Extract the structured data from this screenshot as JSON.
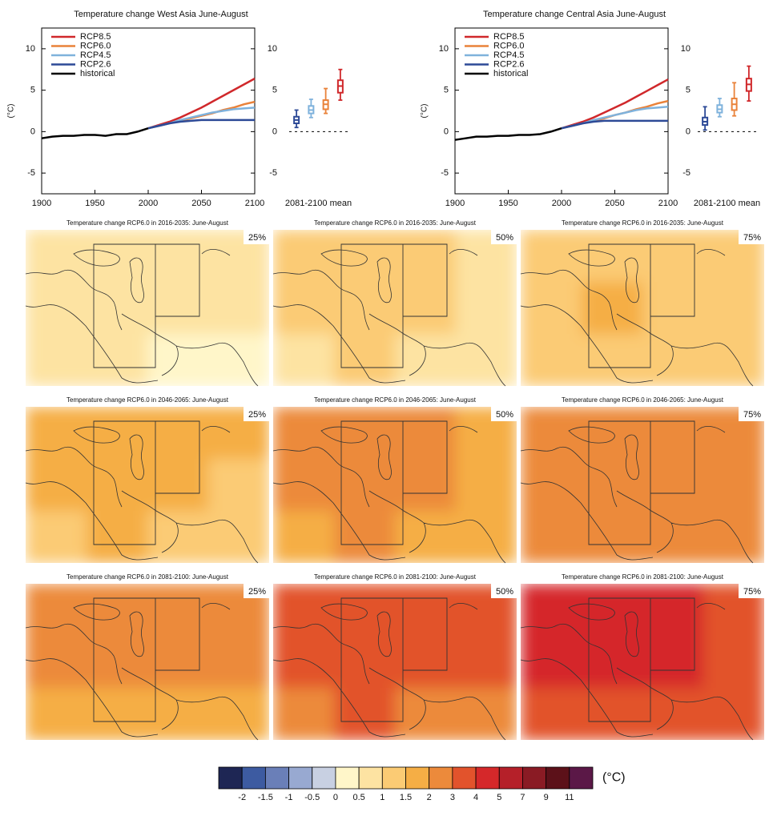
{
  "chart_data": [
    {
      "type": "line",
      "title": "Temperature change West Asia June-August",
      "y_label": "(°C)",
      "box_label": "2081-2100 mean",
      "x": [
        1900,
        1910,
        1920,
        1930,
        1940,
        1950,
        1960,
        1970,
        1980,
        1990,
        2000,
        2010,
        2020,
        2030,
        2040,
        2050,
        2060,
        2070,
        2080,
        2090,
        2100
      ],
      "xlim": [
        1900,
        2100
      ],
      "xticks": [
        1900,
        1950,
        2000,
        2050,
        2100
      ],
      "ylim": [
        -7.5,
        12.5
      ],
      "yticks": [
        -5,
        0,
        5,
        10
      ],
      "series": [
        {
          "name": "RCP8.5",
          "color": "#d0282b",
          "values": [
            null,
            null,
            null,
            null,
            null,
            null,
            null,
            null,
            null,
            null,
            0.4,
            0.8,
            1.2,
            1.7,
            2.3,
            2.9,
            3.6,
            4.3,
            5.0,
            5.7,
            6.4
          ],
          "box": {
            "min": 3.8,
            "q1": 4.7,
            "median": 5.5,
            "q3": 6.2,
            "max": 7.5
          }
        },
        {
          "name": "RCP6.0",
          "color": "#e9823a",
          "values": [
            null,
            null,
            null,
            null,
            null,
            null,
            null,
            null,
            null,
            null,
            0.4,
            0.7,
            1.0,
            1.3,
            1.6,
            1.9,
            2.2,
            2.6,
            2.9,
            3.3,
            3.6
          ],
          "box": {
            "min": 2.2,
            "q1": 2.7,
            "median": 3.3,
            "q3": 3.8,
            "max": 5.2
          }
        },
        {
          "name": "RCP4.5",
          "color": "#7fb2dc",
          "values": [
            null,
            null,
            null,
            null,
            null,
            null,
            null,
            null,
            null,
            null,
            0.4,
            0.7,
            1.0,
            1.4,
            1.7,
            2.0,
            2.3,
            2.5,
            2.7,
            2.8,
            2.9
          ],
          "box": {
            "min": 1.7,
            "q1": 2.2,
            "median": 2.6,
            "q3": 3.1,
            "max": 3.9
          }
        },
        {
          "name": "RCP2.6",
          "color": "#2d4a97",
          "values": [
            null,
            null,
            null,
            null,
            null,
            null,
            null,
            null,
            null,
            null,
            0.4,
            0.7,
            1.0,
            1.2,
            1.3,
            1.4,
            1.4,
            1.4,
            1.4,
            1.4,
            1.4
          ],
          "box": {
            "min": 0.5,
            "q1": 1.0,
            "median": 1.4,
            "q3": 1.8,
            "max": 2.6
          }
        },
        {
          "name": "historical",
          "color": "#000000",
          "values": [
            -0.8,
            -0.6,
            -0.5,
            -0.5,
            -0.4,
            -0.4,
            -0.5,
            -0.3,
            -0.3,
            0.0,
            0.4,
            null,
            null,
            null,
            null,
            null,
            null,
            null,
            null,
            null,
            null
          ]
        }
      ]
    },
    {
      "type": "line",
      "title": "Temperature change Central Asia June-August",
      "y_label": "(°C)",
      "box_label": "2081-2100 mean",
      "x": [
        1900,
        1910,
        1920,
        1930,
        1940,
        1950,
        1960,
        1970,
        1980,
        1990,
        2000,
        2010,
        2020,
        2030,
        2040,
        2050,
        2060,
        2070,
        2080,
        2090,
        2100
      ],
      "xlim": [
        1900,
        2100
      ],
      "xticks": [
        1900,
        1950,
        2000,
        2050,
        2100
      ],
      "ylim": [
        -7.5,
        12.5
      ],
      "yticks": [
        -5,
        0,
        5,
        10
      ],
      "series": [
        {
          "name": "RCP8.5",
          "color": "#d0282b",
          "values": [
            null,
            null,
            null,
            null,
            null,
            null,
            null,
            null,
            null,
            null,
            0.4,
            0.8,
            1.2,
            1.7,
            2.3,
            2.9,
            3.5,
            4.2,
            4.9,
            5.6,
            6.3
          ],
          "box": {
            "min": 3.7,
            "q1": 4.9,
            "median": 5.7,
            "q3": 6.4,
            "max": 7.9
          }
        },
        {
          "name": "RCP6.0",
          "color": "#e9823a",
          "values": [
            null,
            null,
            null,
            null,
            null,
            null,
            null,
            null,
            null,
            null,
            0.4,
            0.7,
            1.0,
            1.3,
            1.6,
            2.0,
            2.3,
            2.7,
            3.0,
            3.4,
            3.7
          ],
          "box": {
            "min": 1.9,
            "q1": 2.6,
            "median": 3.3,
            "q3": 4.0,
            "max": 5.9
          }
        },
        {
          "name": "RCP4.5",
          "color": "#7fb2dc",
          "values": [
            null,
            null,
            null,
            null,
            null,
            null,
            null,
            null,
            null,
            null,
            0.4,
            0.7,
            1.0,
            1.4,
            1.7,
            2.0,
            2.3,
            2.6,
            2.8,
            2.9,
            3.0
          ],
          "box": {
            "min": 1.8,
            "q1": 2.3,
            "median": 2.7,
            "q3": 3.2,
            "max": 4.0
          }
        },
        {
          "name": "RCP2.6",
          "color": "#2d4a97",
          "values": [
            null,
            null,
            null,
            null,
            null,
            null,
            null,
            null,
            null,
            null,
            0.4,
            0.7,
            1.0,
            1.2,
            1.3,
            1.3,
            1.3,
            1.3,
            1.3,
            1.3,
            1.3
          ],
          "box": {
            "min": 0.2,
            "q1": 0.8,
            "median": 1.2,
            "q3": 1.7,
            "max": 3.0
          }
        },
        {
          "name": "historical",
          "color": "#000000",
          "values": [
            -1.0,
            -0.8,
            -0.6,
            -0.6,
            -0.5,
            -0.5,
            -0.4,
            -0.4,
            -0.3,
            0.0,
            0.4,
            null,
            null,
            null,
            null,
            null,
            null,
            null,
            null,
            null,
            null
          ]
        }
      ]
    }
  ],
  "maps": [
    {
      "title": "Temperature change RCP6.0 in 2016-2035: June-August",
      "percentile": "25%",
      "values": [
        [
          0.8,
          0.8,
          0.8,
          0.8
        ],
        [
          0.8,
          0.8,
          0.8,
          0.7
        ],
        [
          0.8,
          0.7,
          0.3,
          0.3
        ]
      ]
    },
    {
      "title": "Temperature change RCP6.0 in 2016-2035: June-August",
      "percentile": "50%",
      "values": [
        [
          1.1,
          1.2,
          1.0,
          0.9
        ],
        [
          1.0,
          1.2,
          1.0,
          0.9
        ],
        [
          0.9,
          1.1,
          0.9,
          0.9
        ]
      ]
    },
    {
      "title": "Temperature change RCP6.0 in 2016-2035: June-August",
      "percentile": "75%",
      "values": [
        [
          1.2,
          1.4,
          1.2,
          1.2
        ],
        [
          1.4,
          1.6,
          1.2,
          1.2
        ],
        [
          1.2,
          1.3,
          1.2,
          1.2
        ]
      ]
    },
    {
      "title": "Temperature change RCP6.0 in 2046-2065: June-August",
      "percentile": "25%",
      "values": [
        [
          1.6,
          1.7,
          1.6,
          1.7
        ],
        [
          1.7,
          1.8,
          1.6,
          1.4
        ],
        [
          1.4,
          1.6,
          1.2,
          1.2
        ]
      ]
    },
    {
      "title": "Temperature change RCP6.0 in 2046-2065: June-August",
      "percentile": "50%",
      "values": [
        [
          2.3,
          2.2,
          2.1,
          1.8
        ],
        [
          2.4,
          2.2,
          2.0,
          1.8
        ],
        [
          1.8,
          2.1,
          1.7,
          1.7
        ]
      ]
    },
    {
      "title": "Temperature change RCP6.0 in 2046-2065: June-August",
      "percentile": "75%",
      "values": [
        [
          2.5,
          2.5,
          2.5,
          2.4
        ],
        [
          2.6,
          2.5,
          2.4,
          2.2
        ],
        [
          2.4,
          2.3,
          2.2,
          2.2
        ]
      ]
    },
    {
      "title": "Temperature change RCP6.0 in 2081-2100: June-August",
      "percentile": "25%",
      "values": [
        [
          2.5,
          2.6,
          2.5,
          2.5
        ],
        [
          2.6,
          2.8,
          2.5,
          2.4
        ],
        [
          1.8,
          1.9,
          1.8,
          1.8
        ]
      ]
    },
    {
      "title": "Temperature change RCP6.0 in 2081-2100: June-August",
      "percentile": "50%",
      "values": [
        [
          3.3,
          3.4,
          3.3,
          3.2
        ],
        [
          3.4,
          3.3,
          3.2,
          3.0
        ],
        [
          2.5,
          3.1,
          2.5,
          2.5
        ]
      ]
    },
    {
      "title": "Temperature change RCP6.0 in 2081-2100: June-August",
      "percentile": "75%",
      "values": [
        [
          4.2,
          4.4,
          4.3,
          3.8
        ],
        [
          4.3,
          4.4,
          4.1,
          3.6
        ],
        [
          3.5,
          3.7,
          3.4,
          3.3
        ]
      ]
    }
  ],
  "colorbar": {
    "unit": "(°C)",
    "bounds": [
      -2,
      -1.5,
      -1,
      -0.5,
      0,
      0.5,
      1,
      1.5,
      2,
      3,
      4,
      5,
      7,
      9,
      11
    ],
    "colors": [
      "#1e2654",
      "#3d5ba1",
      "#6a7fb8",
      "#98a9d1",
      "#c8d0e2",
      "#fff6c9",
      "#fde3a2",
      "#fbcb74",
      "#f5ae45",
      "#ec8a3b",
      "#e2532c",
      "#d5282a",
      "#b52029",
      "#8a1b24",
      "#5c1119",
      "#5b1847"
    ]
  }
}
